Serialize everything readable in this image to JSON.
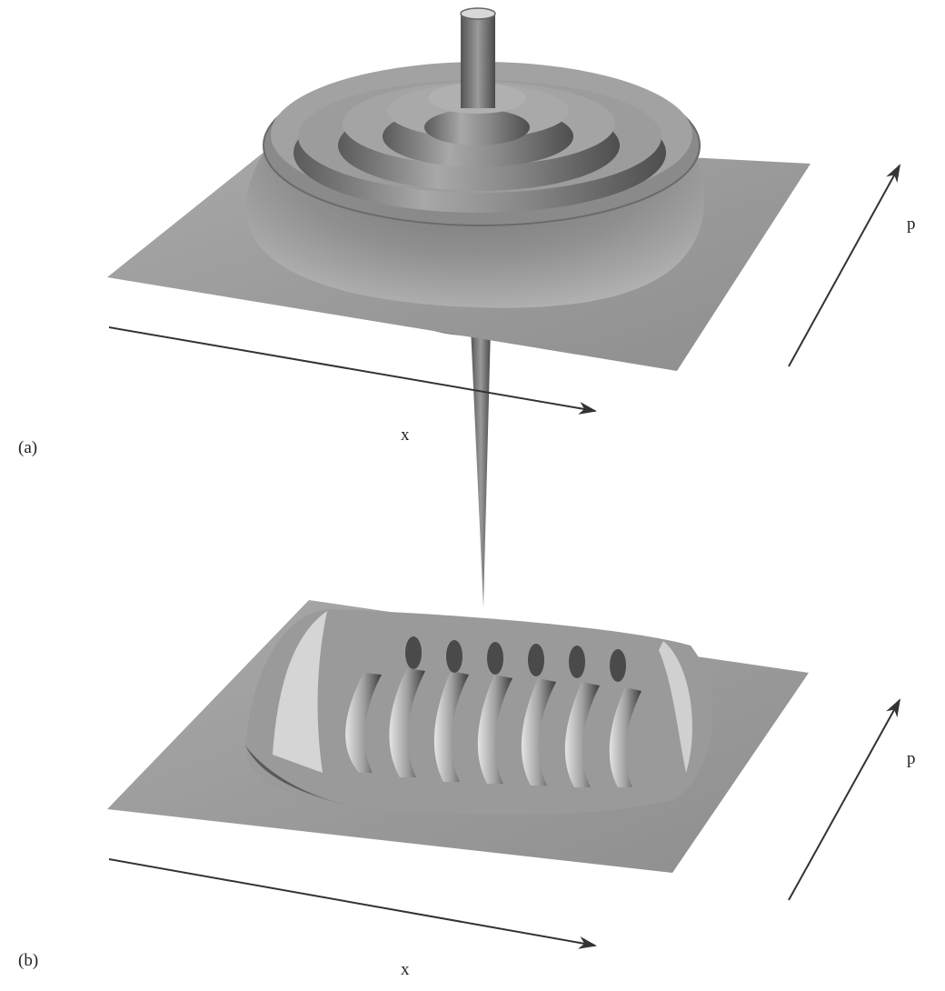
{
  "panels": [
    {
      "panel_label": "(a)",
      "x_axis_label": "x",
      "p_axis_label": "p",
      "surface_shape": "concentric ring terraces with central spike"
    },
    {
      "panel_label": "(b)",
      "x_axis_label": "x",
      "p_axis_label": "p",
      "surface_shape": "ridged oscillating fringes"
    }
  ],
  "colors": {
    "surface": "#9a9a9a",
    "surface_light": "#c9c9c9",
    "surface_dark": "#4a4a4a",
    "axis": "#333333"
  }
}
